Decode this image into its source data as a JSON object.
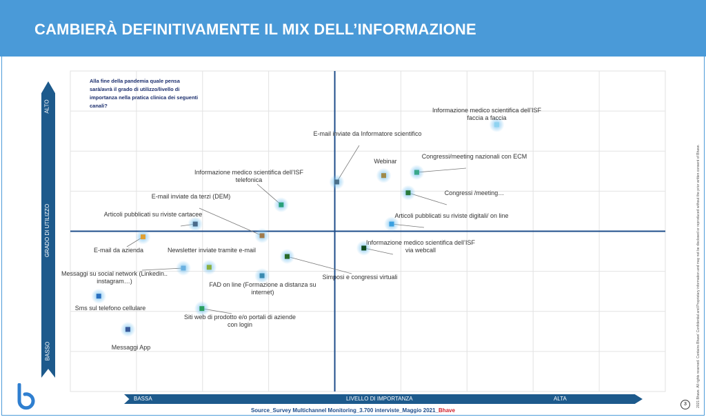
{
  "header": {
    "title": "CAMBIERÀ DEFINITIVAMENTE IL MIX DELL’INFORMAZIONE"
  },
  "question": "Alla fine della pandemia quale pensa sarà/avrà il grado di utilizzo/livello di importanza nella pratica clinica dei seguenti canali?",
  "source": {
    "prefix": "Source_Survey  Multichannel Monitoring_3.700 interviste_Maggio 2021_",
    "brand": "Bhave"
  },
  "page_number": "3",
  "copyright": "2021 Bhave.  All rights reserved. Contains Bhave' Confidential and Proprietary information and may not be disclosed or reproduced without the prior written consent of Bhave.",
  "chart_data": {
    "type": "scatter",
    "title": "",
    "xlabel": "LIVELLO DI IMPORTANZA",
    "ylabel": "GRADO DI UTILIZZO",
    "x_low": "BASSA",
    "x_high": "ALTA",
    "y_low": "BASSO",
    "y_high": "ALTO",
    "xlim": [
      0,
      9
    ],
    "ylim": [
      0,
      8
    ],
    "grid": true,
    "x_mid": 4,
    "y_mid": 4,
    "points": [
      {
        "label": "Informazione medico scientifica dell’ISF faccia a faccia",
        "x": 6.45,
        "y": 6.66,
        "color": "#8fd3f0"
      },
      {
        "label": "E-mail inviate da Informatore scientifico",
        "x": 4.03,
        "y": 5.23,
        "color": "#4a6f8a"
      },
      {
        "label": "Webinar",
        "x": 4.74,
        "y": 5.39,
        "color": "#a08a4a"
      },
      {
        "label": "Congressi/meeting nazionali con ECM",
        "x": 5.24,
        "y": 5.47,
        "color": "#3aa88a"
      },
      {
        "label": "Congressi /meeting…",
        "x": 5.11,
        "y": 4.96,
        "color": "#2a7a3a"
      },
      {
        "label": "Articoli pubblicati su riviste digitali/ on line",
        "x": 4.86,
        "y": 4.18,
        "color": "#3aa0e0"
      },
      {
        "label": "Informazione medico scientifica dell’ISF via webcall",
        "x": 4.44,
        "y": 3.58,
        "color": "#0e4a1e"
      },
      {
        "label": "Informazione medico scientifica dell’ISF telefonica",
        "x": 3.19,
        "y": 4.66,
        "color": "#2aa07a"
      },
      {
        "label": "E-mail inviate da terzi (DEM)",
        "x": 2.9,
        "y": 3.89,
        "color": "#a07a4a"
      },
      {
        "label": "Articoli pubblicati su riviste cartacee",
        "x": 1.89,
        "y": 4.18,
        "color": "#4a6a8a"
      },
      {
        "label": "E-mail da azienda",
        "x": 1.1,
        "y": 3.86,
        "color": "#e0a030"
      },
      {
        "label": "Newsletter inviate tramite e-mail",
        "x": 2.1,
        "y": 3.1,
        "color": "#8ab040"
      },
      {
        "label": "Messaggi su social network (Linkedin.. instagram…)",
        "x": 1.71,
        "y": 3.08,
        "color": "#6ab0e0"
      },
      {
        "label": "Simposi e congressi virtuali",
        "x": 3.28,
        "y": 3.37,
        "color": "#2a6a2a"
      },
      {
        "label": "FAD on line (Formazione a distanza su internet)",
        "x": 2.9,
        "y": 2.89,
        "color": "#3a8ab0"
      },
      {
        "label": "Sms sul telefono cellulare",
        "x": 0.43,
        "y": 2.38,
        "color": "#2a70c0"
      },
      {
        "label": "Siti web di prodotto e/o portali di aziende con login",
        "x": 1.99,
        "y": 2.07,
        "color": "#2aa060"
      },
      {
        "label": "Messaggi App",
        "x": 0.87,
        "y": 1.55,
        "color": "#3a5a9a"
      }
    ]
  }
}
